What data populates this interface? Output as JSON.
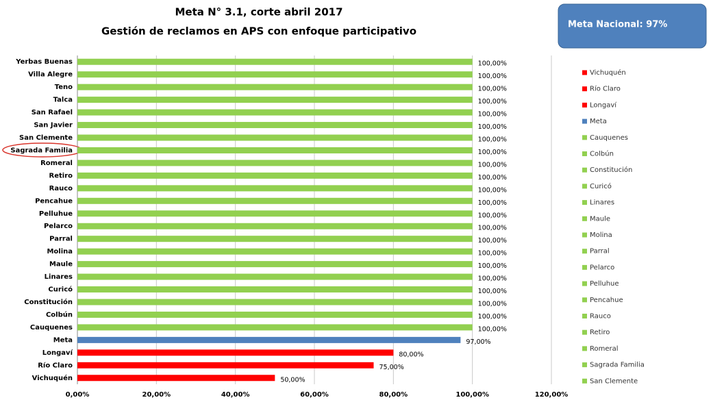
{
  "chart_data": {
    "type": "hbar",
    "title": "Meta N° 3.1, corte abril 2017",
    "subtitle": "Gestión de reclamos en APS con enfoque participativo",
    "annotation": "Meta Nacional: 97%",
    "categories": [
      "Yerbas Buenas",
      "Villa Alegre",
      "Teno",
      "Talca",
      "San Rafael",
      "San Javier",
      "San Clemente",
      "Sagrada Familia",
      "Romeral",
      "Retiro",
      "Rauco",
      "Pencahue",
      "Pelluhue",
      "Pelarco",
      "Parral",
      "Molina",
      "Maule",
      "Linares",
      "Curicó",
      "Constitución",
      "Colbún",
      "Cauquenes",
      "Meta",
      "Longaví",
      "Río Claro",
      "Vichuquén"
    ],
    "values": [
      100,
      100,
      100,
      100,
      100,
      100,
      100,
      100,
      100,
      100,
      100,
      100,
      100,
      100,
      100,
      100,
      100,
      100,
      100,
      100,
      100,
      100,
      97,
      80,
      75,
      50
    ],
    "value_labels": [
      "100,00%",
      "100,00%",
      "100,00%",
      "100,00%",
      "100,00%",
      "100,00%",
      "100,00%",
      "100,00%",
      "100,00%",
      "100,00%",
      "100,00%",
      "100,00%",
      "100,00%",
      "100,00%",
      "100,00%",
      "100,00%",
      "100,00%",
      "100,00%",
      "100,00%",
      "100,00%",
      "100,00%",
      "100,00%",
      "97,00%",
      "80,00%",
      "75,00%",
      "50,00%"
    ],
    "colors": [
      "#92d050",
      "#92d050",
      "#92d050",
      "#92d050",
      "#92d050",
      "#92d050",
      "#92d050",
      "#92d050",
      "#92d050",
      "#92d050",
      "#92d050",
      "#92d050",
      "#92d050",
      "#92d050",
      "#92d050",
      "#92d050",
      "#92d050",
      "#92d050",
      "#92d050",
      "#92d050",
      "#92d050",
      "#92d050",
      "#4f81bd",
      "#ff0000",
      "#ff0000",
      "#ff0000"
    ],
    "legend": [
      {
        "name": "Vichuquén",
        "color": "#ff0000"
      },
      {
        "name": "Río Claro",
        "color": "#ff0000"
      },
      {
        "name": "Longaví",
        "color": "#ff0000"
      },
      {
        "name": "Meta",
        "color": "#4f81bd"
      },
      {
        "name": "Cauquenes",
        "color": "#92d050"
      },
      {
        "name": "Colbún",
        "color": "#92d050"
      },
      {
        "name": "Constitución",
        "color": "#92d050"
      },
      {
        "name": "Curicó",
        "color": "#92d050"
      },
      {
        "name": "Linares",
        "color": "#92d050"
      },
      {
        "name": "Maule",
        "color": "#92d050"
      },
      {
        "name": "Molina",
        "color": "#92d050"
      },
      {
        "name": "Parral",
        "color": "#92d050"
      },
      {
        "name": "Pelarco",
        "color": "#92d050"
      },
      {
        "name": "Pelluhue",
        "color": "#92d050"
      },
      {
        "name": "Pencahue",
        "color": "#92d050"
      },
      {
        "name": "Rauco",
        "color": "#92d050"
      },
      {
        "name": "Retiro",
        "color": "#92d050"
      },
      {
        "name": "Romeral",
        "color": "#92d050"
      },
      {
        "name": "Sagrada Familia",
        "color": "#92d050"
      },
      {
        "name": "San Clemente",
        "color": "#92d050"
      }
    ],
    "xlim": [
      0,
      120
    ],
    "xticks": [
      {
        "value": 0,
        "label": "0,00%"
      },
      {
        "value": 20,
        "label": "20,00%"
      },
      {
        "value": 40,
        "label": "40,00%"
      },
      {
        "value": 60,
        "label": "60,00%"
      },
      {
        "value": 80,
        "label": "80,00%"
      },
      {
        "value": 100,
        "label": "100,00%"
      },
      {
        "value": 120,
        "label": "120,00%"
      }
    ],
    "grid": true
  }
}
